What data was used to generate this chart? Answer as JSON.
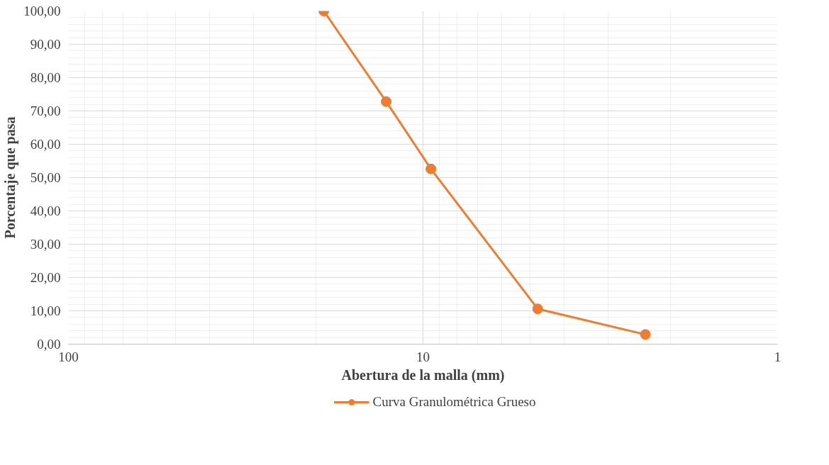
{
  "chart_data": {
    "type": "line",
    "xlabel": "Abertura de la malla (mm)",
    "ylabel": "Porcentaje que pasa",
    "log": "x",
    "x": [
      19.05,
      12.7,
      9.5,
      4.75,
      2.36
    ],
    "series": [
      {
        "name": "Curva Granulométrica Grueso",
        "color": "#ed7d31",
        "values": [
          100,
          72.8,
          52.6,
          10.6,
          2.9
        ]
      }
    ],
    "xlim": [
      100,
      1
    ],
    "xticks": [
      100,
      10,
      1
    ],
    "ylim": [
      0,
      100
    ],
    "yticks": [
      {
        "value": 0,
        "label": "0,00"
      },
      {
        "value": 10,
        "label": "10,00"
      },
      {
        "value": 20,
        "label": "20,00"
      },
      {
        "value": 30,
        "label": "30,00"
      },
      {
        "value": 40,
        "label": "40,00"
      },
      {
        "value": 50,
        "label": "50,00"
      },
      {
        "value": 60,
        "label": "60,00"
      },
      {
        "value": 70,
        "label": "70,00"
      },
      {
        "value": 80,
        "label": "80,00"
      },
      {
        "value": 90,
        "label": "90,00"
      },
      {
        "value": 100,
        "label": "100,00"
      }
    ],
    "grid": true,
    "legend": "bottom",
    "marker": "circle",
    "line_style": "solid"
  }
}
